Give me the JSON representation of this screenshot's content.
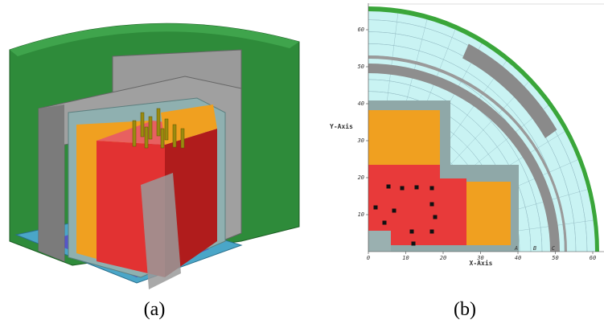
{
  "panels": [
    {
      "caption": "(a)"
    },
    {
      "caption": "(b)",
      "x_axis_label": "X-Axis",
      "y_axis_label": "Y-Axis",
      "xticks": [
        0,
        10,
        20,
        30,
        40,
        50,
        60
      ],
      "yticks": [
        10,
        20,
        30,
        40,
        50,
        60
      ],
      "markers": [
        "A",
        "B",
        "C"
      ]
    }
  ]
}
